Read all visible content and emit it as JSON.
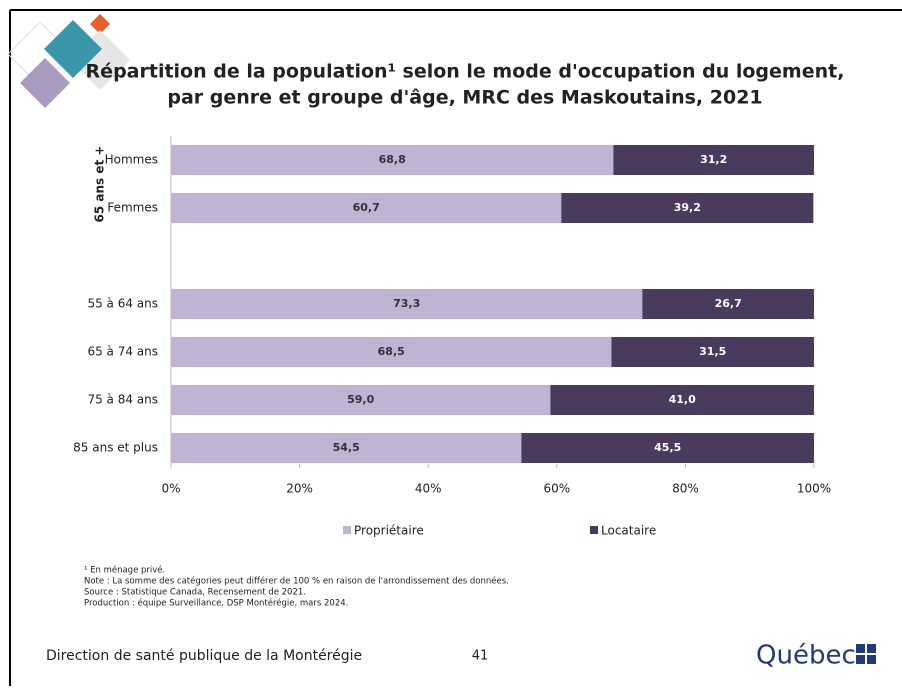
{
  "chart_data": {
    "type": "stacked_barh",
    "title_lines": [
      "Répartition de la population¹ selon le mode d'occupation du logement,",
      "par genre et groupe d'âge, MRC des Maskoutains, 2021"
    ],
    "group_label": "65 ans et +",
    "categories": [
      "Hommes",
      "Femmes",
      null,
      "55 à 64 ans",
      "65 à 74 ans",
      "75 à 84 ans",
      "85 ans et plus"
    ],
    "series": [
      {
        "name": "Propriétaire",
        "color": "#c0b3d3",
        "label_color": "#333333",
        "values": [
          68.8,
          60.7,
          null,
          73.3,
          68.5,
          59.0,
          54.5
        ],
        "value_labels": [
          "68,8",
          "60,7",
          null,
          "73,3",
          "68,5",
          "59,0",
          "54,5"
        ]
      },
      {
        "name": "Locataire",
        "color": "#4a3b5e",
        "label_color": "#ffffff",
        "values": [
          31.2,
          39.2,
          null,
          26.7,
          31.5,
          41.0,
          45.5
        ],
        "value_labels": [
          "31,2",
          "39,2",
          null,
          "26,7",
          "31,5",
          "41,0",
          "45,5"
        ]
      }
    ],
    "xlim": [
      0,
      100
    ],
    "xticks": [
      {
        "value": 0,
        "label": "0%"
      },
      {
        "value": 20,
        "label": "20%"
      },
      {
        "value": 40,
        "label": "40%"
      },
      {
        "value": 60,
        "label": "60%"
      },
      {
        "value": 80,
        "label": "80%"
      },
      {
        "value": 100,
        "label": "100%"
      }
    ],
    "grid": false
  },
  "footnotes": [
    "¹ En ménage privé.",
    "Note : La somme des catégories peut différer de 100 % en raison de l'arrondissement des données.",
    "Source : Statistique Canada, Recensement de 2021.",
    "Production : équipe Surveillance, DSP Montérégie, mars 2024."
  ],
  "footer": {
    "organization": "Direction de santé publique de la Montérégie",
    "page": "41",
    "logo": "Québec"
  }
}
